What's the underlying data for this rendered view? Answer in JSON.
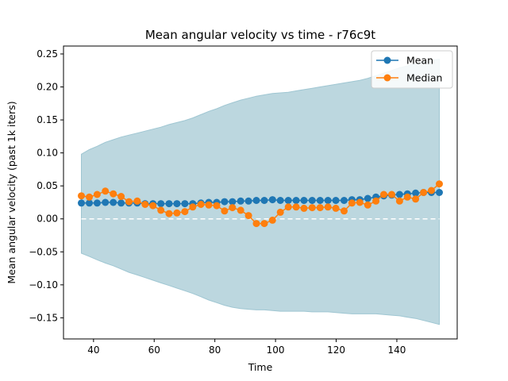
{
  "chart_data": {
    "type": "line",
    "title": "Mean angular velocity vs time - r76c9t",
    "xlabel": "Time",
    "ylabel": "Mean angular velocity (past 1k iters)",
    "xlim": [
      30.1,
      159.9
    ],
    "ylim": [
      -0.182,
      0.262
    ],
    "xticks": [
      40,
      60,
      80,
      100,
      120,
      140
    ],
    "yticks": [
      -0.15,
      -0.1,
      -0.05,
      0.0,
      0.05,
      0.1,
      0.15,
      0.2,
      0.25
    ],
    "ytick_labels": [
      "−0.15",
      "−0.10",
      "−0.05",
      "0.00",
      "0.05",
      "0.10",
      "0.15",
      "0.20",
      "0.25"
    ],
    "legend": {
      "position": "top-right",
      "entries": [
        "Mean",
        "Median"
      ]
    },
    "x": [
      36,
      38.6,
      41.2,
      43.9,
      46.5,
      49.1,
      51.7,
      54.4,
      57,
      59.6,
      62.2,
      64.9,
      67.5,
      70.1,
      72.7,
      75.4,
      78,
      80.6,
      83.2,
      85.8,
      88.5,
      91.1,
      93.7,
      96.3,
      99,
      101.6,
      104.2,
      106.8,
      109.4,
      112.1,
      114.7,
      117.3,
      119.9,
      122.6,
      125.2,
      127.8,
      130.4,
      133.1,
      135.7,
      138.3,
      140.9,
      143.5,
      146.2,
      148.8,
      151.4,
      154
    ],
    "series": [
      {
        "name": "Mean",
        "color": "#1f77b4",
        "values": [
          0.024,
          0.024,
          0.024,
          0.025,
          0.025,
          0.024,
          0.024,
          0.024,
          0.023,
          0.023,
          0.023,
          0.023,
          0.023,
          0.023,
          0.023,
          0.024,
          0.025,
          0.025,
          0.026,
          0.026,
          0.027,
          0.027,
          0.028,
          0.028,
          0.029,
          0.028,
          0.028,
          0.028,
          0.028,
          0.028,
          0.028,
          0.028,
          0.028,
          0.028,
          0.029,
          0.029,
          0.031,
          0.033,
          0.035,
          0.036,
          0.037,
          0.038,
          0.039,
          0.04,
          0.04,
          0.04
        ]
      },
      {
        "name": "Median",
        "color": "#ff7f0e",
        "values": [
          0.035,
          0.033,
          0.037,
          0.042,
          0.038,
          0.034,
          0.026,
          0.027,
          0.022,
          0.02,
          0.013,
          0.008,
          0.009,
          0.011,
          0.018,
          0.022,
          0.021,
          0.02,
          0.012,
          0.017,
          0.013,
          0.005,
          -0.007,
          -0.007,
          -0.002,
          0.01,
          0.018,
          0.018,
          0.016,
          0.017,
          0.017,
          0.018,
          0.016,
          0.012,
          0.024,
          0.025,
          0.021,
          0.027,
          0.037,
          0.037,
          0.027,
          0.033,
          0.03,
          0.04,
          0.043,
          0.053
        ]
      }
    ],
    "band": {
      "color": "#9fc6d2",
      "upper": [
        0.098,
        0.105,
        0.11,
        0.116,
        0.12,
        0.124,
        0.127,
        0.13,
        0.133,
        0.136,
        0.139,
        0.143,
        0.146,
        0.149,
        0.153,
        0.158,
        0.163,
        0.167,
        0.172,
        0.176,
        0.18,
        0.183,
        0.186,
        0.188,
        0.19,
        0.191,
        0.192,
        0.194,
        0.196,
        0.198,
        0.2,
        0.202,
        0.204,
        0.206,
        0.208,
        0.21,
        0.213,
        0.217,
        0.221,
        0.225,
        0.229,
        0.232,
        0.235,
        0.238,
        0.24,
        0.242
      ],
      "lower": [
        -0.052,
        -0.057,
        -0.062,
        -0.067,
        -0.071,
        -0.076,
        -0.081,
        -0.085,
        -0.089,
        -0.093,
        -0.097,
        -0.101,
        -0.105,
        -0.109,
        -0.113,
        -0.118,
        -0.123,
        -0.127,
        -0.131,
        -0.134,
        -0.136,
        -0.137,
        -0.138,
        -0.138,
        -0.139,
        -0.14,
        -0.14,
        -0.14,
        -0.14,
        -0.141,
        -0.141,
        -0.141,
        -0.142,
        -0.143,
        -0.144,
        -0.144,
        -0.144,
        -0.144,
        -0.145,
        -0.146,
        -0.147,
        -0.149,
        -0.151,
        -0.154,
        -0.157,
        -0.16
      ]
    },
    "reference_line": {
      "y": 0,
      "style": "dashed",
      "color": "#ffffff"
    },
    "grid": false
  }
}
